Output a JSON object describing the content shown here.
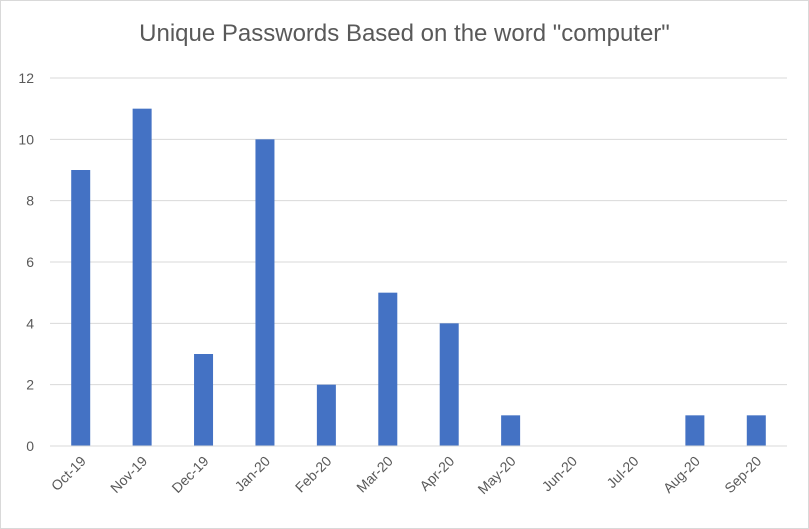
{
  "chart_data": {
    "type": "bar",
    "title": "Unique Passwords Based on the word \"computer\"",
    "categories": [
      "Oct-19",
      "Nov-19",
      "Dec-19",
      "Jan-20",
      "Feb-20",
      "Mar-20",
      "Apr-20",
      "May-20",
      "Jun-20",
      "Jul-20",
      "Aug-20",
      "Sep-20"
    ],
    "values": [
      9,
      11,
      3,
      10,
      2,
      5,
      4,
      1,
      0,
      0,
      1,
      1
    ],
    "ylim": [
      0,
      12
    ],
    "yticks": [
      "0",
      "2",
      "4",
      "6",
      "8",
      "10",
      "12"
    ],
    "grid": true,
    "legend": "none",
    "xlabel": "",
    "ylabel": "",
    "colors": {
      "bar": "#4472c4",
      "grid": "#d9d9d9",
      "text": "#595959"
    }
  }
}
